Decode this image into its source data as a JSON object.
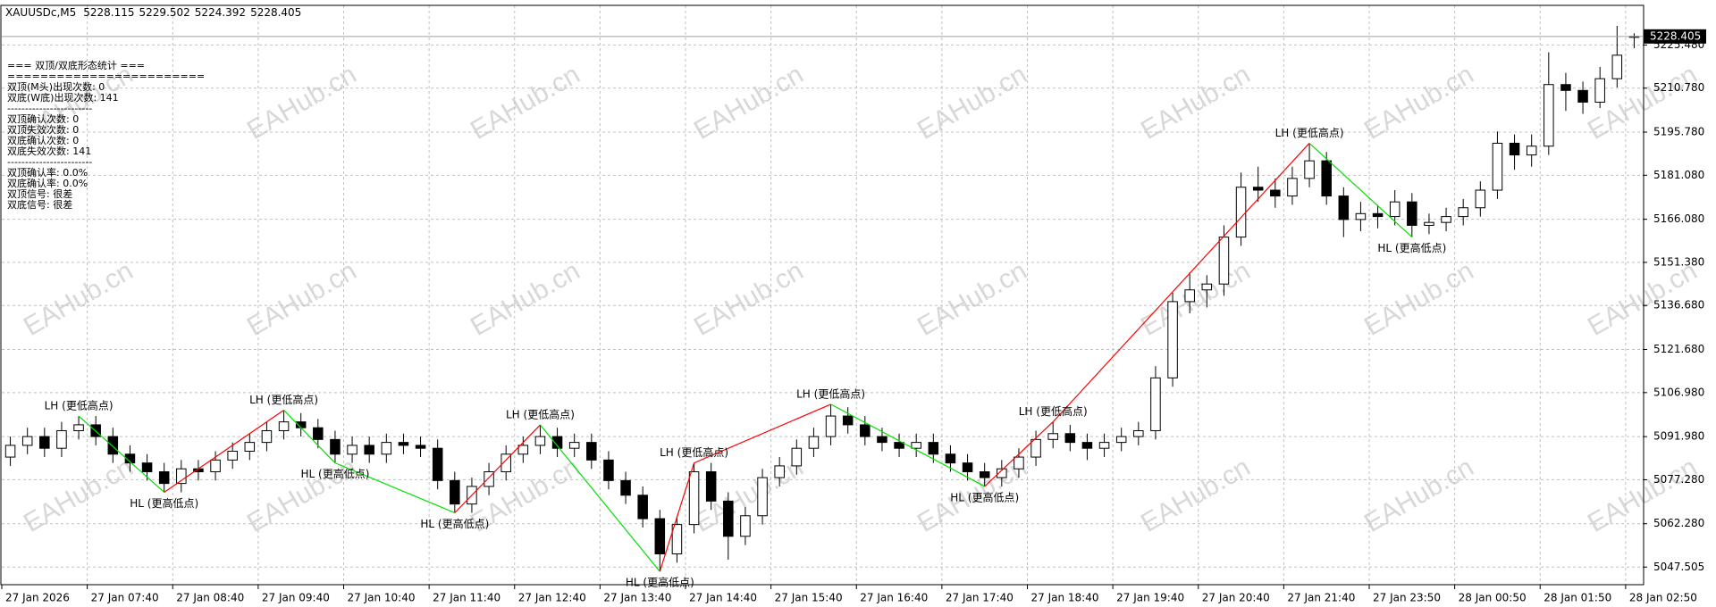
{
  "symbol": "XAUUSDc,M5",
  "stats_panel": [
    "=== 双顶/双底形态统计 ===",
    "========================",
    "双顶(M头)出现次数: 0",
    "双底(W底)出现次数: 141",
    "------------------------",
    "双顶确认次数: 0",
    "双顶失效次数: 0",
    "双底确认次数: 0",
    "双底失效次数: 141",
    "------------------------",
    "双顶确认率: 0.0%",
    "双底确认率: 0.0%",
    "双顶信号: 很差",
    "双底信号: 很差"
  ],
  "watermark": "EAHub.cn",
  "chart_data": {
    "type": "candlestick",
    "categories": [
      "27 Jan 2026",
      null,
      null,
      null,
      null,
      "27 Jan 07:40",
      null,
      null,
      null,
      null,
      "27 Jan 08:40",
      null,
      null,
      null,
      null,
      "27 Jan 09:40",
      null,
      null,
      null,
      null,
      "27 Jan 10:40",
      null,
      null,
      null,
      null,
      "27 Jan 11:40",
      null,
      null,
      null,
      null,
      "27 Jan 12:40",
      null,
      null,
      null,
      null,
      "27 Jan 13:40",
      null,
      null,
      null,
      null,
      "27 Jan 14:40",
      null,
      null,
      null,
      null,
      "27 Jan 15:40",
      null,
      null,
      null,
      null,
      "27 Jan 16:40",
      null,
      null,
      null,
      null,
      "27 Jan 17:40",
      null,
      null,
      null,
      null,
      "27 Jan 18:40",
      null,
      null,
      null,
      null,
      "27 Jan 19:40",
      null,
      null,
      null,
      null,
      "27 Jan 20:40",
      null,
      null,
      null,
      null,
      "27 Jan 21:40",
      null,
      null,
      null,
      null,
      "27 Jan 23:50",
      null,
      null,
      null,
      null,
      "28 Jan 00:50",
      null,
      null,
      null,
      null,
      "28 Jan 01:50",
      null,
      null,
      null,
      null,
      "28 Jan 02:50"
    ],
    "open": [
      5085,
      5089,
      5092,
      5088,
      5094,
      5096,
      5092,
      5086,
      5083,
      5080,
      5076,
      5081,
      5080,
      5084,
      5087,
      5090,
      5094,
      5097,
      5095,
      5091,
      5086,
      5089,
      5086,
      5090,
      5089,
      5088,
      5077,
      5069,
      5075,
      5080,
      5086,
      5089,
      5092,
      5088,
      5090,
      5084,
      5077,
      5072,
      5064,
      5052,
      5062,
      5080,
      5070,
      5058,
      5065,
      5078,
      5082,
      5088,
      5092,
      5099,
      5096,
      5092,
      5090,
      5088,
      5090,
      5086,
      5083,
      5080,
      5078,
      5081,
      5085,
      5091,
      5093,
      5090,
      5088,
      5090,
      5092,
      5094,
      5112,
      5138,
      5142,
      5144,
      5160,
      5177,
      5176,
      5174,
      5180,
      5186,
      5174,
      5166,
      5168,
      5167,
      5172,
      5164,
      5165,
      5167,
      5170,
      5176,
      5192,
      5188,
      5191,
      5212,
      5210,
      5206,
      5214,
      5228.115
    ],
    "high": [
      5092,
      5095,
      5095,
      5097,
      5099,
      5099,
      5095,
      5089,
      5086,
      5083,
      5084,
      5084,
      5087,
      5090,
      5093,
      5097,
      5101,
      5100,
      5098,
      5094,
      5092,
      5092,
      5093,
      5093,
      5092,
      5091,
      5080,
      5078,
      5083,
      5089,
      5092,
      5096,
      5095,
      5093,
      5093,
      5087,
      5080,
      5075,
      5067,
      5065,
      5083,
      5083,
      5073,
      5068,
      5081,
      5085,
      5091,
      5095,
      5103,
      5102,
      5099,
      5095,
      5093,
      5093,
      5093,
      5089,
      5086,
      5083,
      5084,
      5088,
      5094,
      5097,
      5096,
      5093,
      5093,
      5095,
      5097,
      5116,
      5141,
      5148,
      5147,
      5164,
      5182,
      5184,
      5180,
      5184,
      5192,
      5189,
      5177,
      5172,
      5171,
      5176,
      5175,
      5168,
      5170,
      5173,
      5179,
      5196,
      5195,
      5195,
      5223,
      5216,
      5213,
      5218,
      5232,
      5229.502
    ],
    "low": [
      5082,
      5086,
      5085,
      5085,
      5091,
      5089,
      5083,
      5080,
      5077,
      5073,
      5073,
      5077,
      5077,
      5081,
      5084,
      5087,
      5091,
      5092,
      5088,
      5083,
      5083,
      5083,
      5083,
      5086,
      5085,
      5074,
      5066,
      5066,
      5072,
      5077,
      5083,
      5086,
      5085,
      5085,
      5081,
      5074,
      5069,
      5061,
      5046,
      5049,
      5059,
      5067,
      5050,
      5055,
      5062,
      5075,
      5079,
      5085,
      5089,
      5093,
      5089,
      5087,
      5085,
      5085,
      5083,
      5080,
      5077,
      5075,
      5075,
      5078,
      5082,
      5088,
      5087,
      5084,
      5085,
      5087,
      5089,
      5091,
      5109,
      5134,
      5136,
      5140,
      5157,
      5172,
      5170,
      5171,
      5177,
      5171,
      5160,
      5162,
      5163,
      5164,
      5160,
      5161,
      5162,
      5164,
      5167,
      5173,
      5183,
      5184,
      5188,
      5203,
      5202,
      5204,
      5211,
      5224.392
    ],
    "close": [
      5089,
      5092,
      5088,
      5094,
      5096,
      5092,
      5086,
      5083,
      5080,
      5076,
      5081,
      5080,
      5084,
      5087,
      5090,
      5094,
      5097,
      5095,
      5091,
      5086,
      5089,
      5086,
      5090,
      5089,
      5088,
      5077,
      5069,
      5075,
      5080,
      5086,
      5089,
      5092,
      5088,
      5090,
      5084,
      5077,
      5072,
      5064,
      5052,
      5062,
      5080,
      5070,
      5058,
      5065,
      5078,
      5082,
      5088,
      5092,
      5099,
      5096,
      5092,
      5090,
      5088,
      5090,
      5086,
      5083,
      5080,
      5078,
      5081,
      5085,
      5091,
      5093,
      5090,
      5088,
      5090,
      5092,
      5094,
      5112,
      5138,
      5142,
      5144,
      5160,
      5177,
      5176,
      5174,
      5180,
      5186,
      5174,
      5166,
      5168,
      5167,
      5172,
      5164,
      5165,
      5167,
      5170,
      5176,
      5192,
      5188,
      5191,
      5212,
      5210,
      5206,
      5214,
      5222,
      5228.405
    ],
    "ylim": [
      5041.5,
      5239
    ],
    "yticks": [
      5047.505,
      {
        "value": 5062.28,
        "label": "5062.280"
      },
      {
        "value": 5077.28,
        "label": "5077.280"
      },
      {
        "value": 5091.98,
        "label": "5091.980"
      },
      {
        "value": 5106.98,
        "label": "5106.980"
      },
      {
        "value": 5121.68,
        "label": "5121.680"
      },
      {
        "value": 5136.68,
        "label": "5136.680"
      },
      {
        "value": 5151.38,
        "label": "5151.380"
      },
      {
        "value": 5166.08,
        "label": "5166.080"
      },
      {
        "value": 5181.08,
        "label": "5181.080"
      },
      {
        "value": 5195.78,
        "label": "5195.780"
      },
      {
        "value": 5210.78,
        "label": "5210.780"
      },
      {
        "value": 5225.48,
        "label": "5225.480"
      }
    ],
    "grid": true,
    "up_color": "#ffffff",
    "down_color": "#000000",
    "wick_color": "#000000",
    "rise_color": "#ff0000",
    "fall_color": "#00e000",
    "pivots": [
      {
        "bar": 4,
        "price": 5099,
        "label": "LH (更低高点)"
      },
      {
        "bar": 9,
        "price": 5073,
        "label": "HL (更高低点)"
      },
      {
        "bar": 16,
        "price": 5101,
        "label": "LH (更低高点)"
      },
      {
        "bar": 19,
        "price": 5083,
        "label": "HL (更高低点)"
      },
      {
        "bar": 26,
        "price": 5066,
        "label": "HL (更高低点)"
      },
      {
        "bar": 31,
        "price": 5096,
        "label": "LH (更低高点)"
      },
      {
        "bar": 38,
        "price": 5046,
        "label": "HL (更高低点)"
      },
      {
        "bar": 40,
        "price": 5083,
        "label": "LH (更低高点)"
      },
      {
        "bar": 48,
        "price": 5103,
        "label": "LH (更低高点)"
      },
      {
        "bar": 57,
        "price": 5075,
        "label": "HL (更高低点)"
      },
      {
        "bar": 61,
        "price": 5097,
        "label": "LH (更低高点)"
      },
      {
        "bar": 76,
        "price": 5192,
        "label": "LH (更低高点)"
      },
      {
        "bar": 82,
        "price": 5160,
        "label": "HL (更高低点)"
      }
    ]
  }
}
